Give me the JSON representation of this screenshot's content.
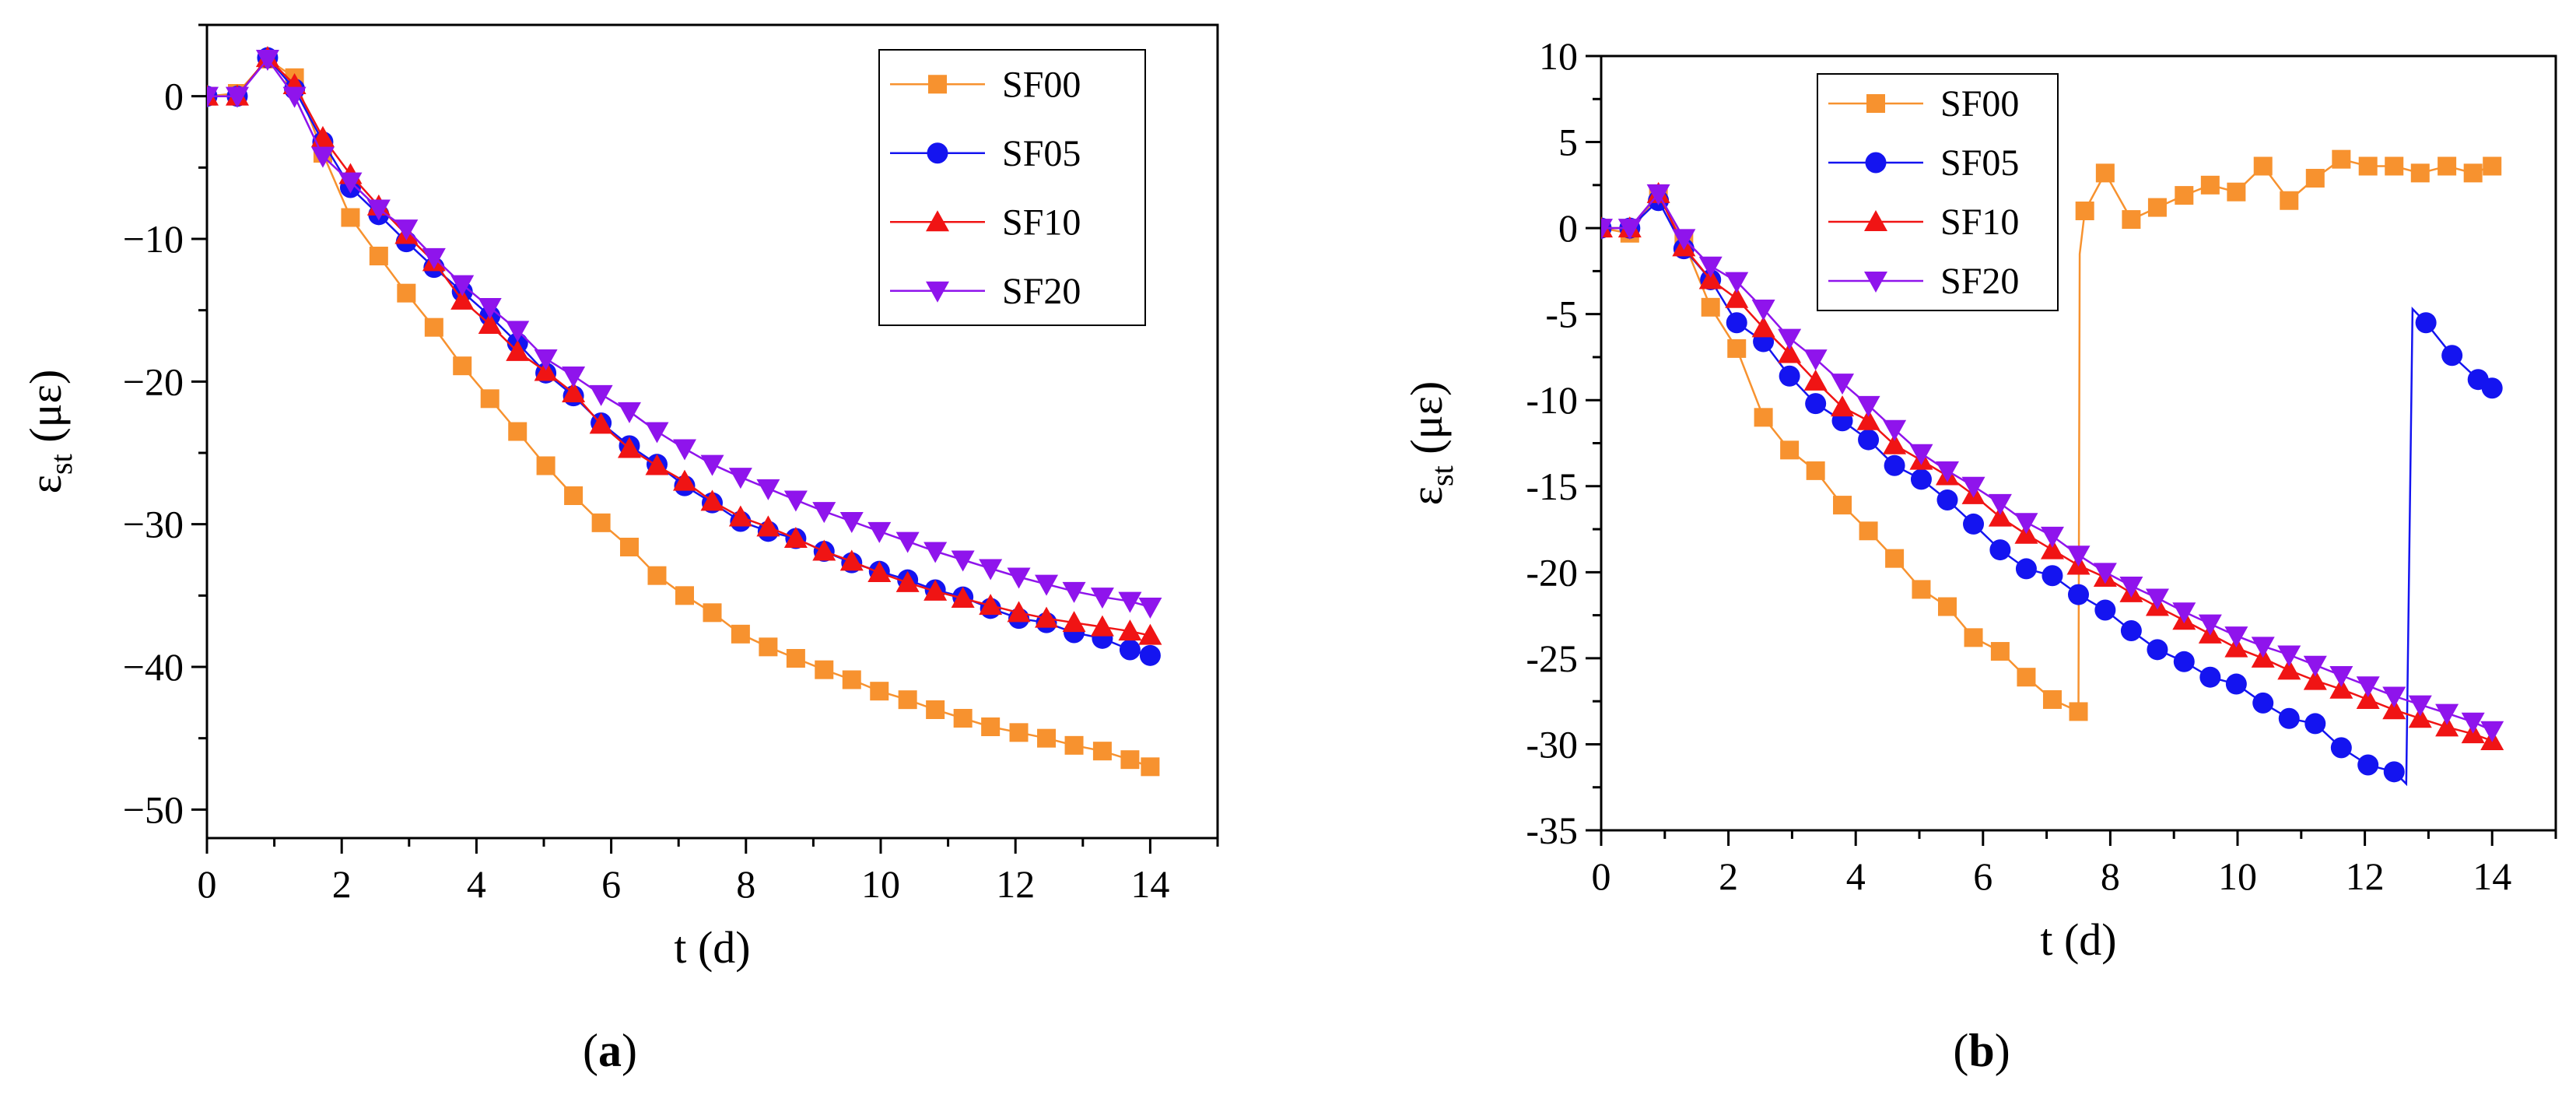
{
  "chart_data": [
    {
      "type": "line",
      "panel": "a",
      "xlabel_main": "t",
      "xlabel_unit": "(d)",
      "ylabel_symbol": "ε",
      "ylabel_sub": "st",
      "ylabel_unit": "(με)",
      "xlim": [
        0,
        15
      ],
      "ylim": [
        -52,
        5
      ],
      "xticks": [
        0,
        2,
        4,
        6,
        8,
        10,
        12,
        14
      ],
      "yticks": [
        0,
        -10,
        -20,
        -30,
        -40,
        -50
      ],
      "ytick_labels": [
        "0",
        "−10",
        "−20",
        "−30",
        "−40",
        "−50"
      ],
      "legend_position": "top-right",
      "series": [
        {
          "name": "SF00",
          "color": "#F7922F",
          "marker": "square",
          "x": [
            0,
            0.45,
            0.9,
            1.3,
            1.72,
            2.13,
            2.55,
            2.96,
            3.37,
            3.79,
            4.2,
            4.61,
            5.03,
            5.44,
            5.85,
            6.27,
            6.68,
            7.09,
            7.5,
            7.92,
            8.33,
            8.74,
            9.16,
            9.57,
            9.98,
            10.4,
            10.81,
            11.22,
            11.63,
            12.05,
            12.46,
            12.87,
            13.29,
            13.7,
            14.0
          ],
          "y": [
            0,
            0.2,
            2.6,
            1.3,
            -4.0,
            -8.5,
            -11.2,
            -13.8,
            -16.2,
            -18.9,
            -21.2,
            -23.5,
            -25.9,
            -28.0,
            -29.9,
            -31.6,
            -33.6,
            -35.0,
            -36.2,
            -37.7,
            -38.6,
            -39.4,
            -40.2,
            -40.9,
            -41.7,
            -42.3,
            -43.0,
            -43.6,
            -44.2,
            -44.6,
            -45.0,
            -45.5,
            -45.9,
            -46.5,
            -47.0
          ]
        },
        {
          "name": "SF05",
          "color": "#1414F0",
          "marker": "circle",
          "x": [
            0,
            0.45,
            0.9,
            1.3,
            1.72,
            2.13,
            2.55,
            2.96,
            3.37,
            3.79,
            4.2,
            4.61,
            5.03,
            5.44,
            5.85,
            6.27,
            6.68,
            7.09,
            7.5,
            7.92,
            8.33,
            8.74,
            9.16,
            9.57,
            9.98,
            10.4,
            10.81,
            11.22,
            11.63,
            12.05,
            12.46,
            12.87,
            13.29,
            13.7,
            14.0
          ],
          "y": [
            0,
            0,
            2.7,
            0.5,
            -3.2,
            -6.4,
            -8.3,
            -10.2,
            -12.0,
            -13.7,
            -15.4,
            -17.3,
            -19.4,
            -21.0,
            -22.9,
            -24.5,
            -25.8,
            -27.3,
            -28.5,
            -29.8,
            -30.5,
            -31.0,
            -31.9,
            -32.7,
            -33.3,
            -33.9,
            -34.6,
            -35.1,
            -35.9,
            -36.6,
            -36.9,
            -37.6,
            -38.0,
            -38.8,
            -39.2
          ]
        },
        {
          "name": "SF10",
          "color": "#F01414",
          "marker": "triangle-up",
          "x": [
            0,
            0.45,
            0.9,
            1.3,
            1.72,
            2.13,
            2.55,
            2.96,
            3.37,
            3.79,
            4.2,
            4.61,
            5.03,
            5.44,
            5.85,
            6.27,
            6.68,
            7.09,
            7.5,
            7.92,
            8.33,
            8.74,
            9.16,
            9.57,
            9.98,
            10.4,
            10.81,
            11.22,
            11.63,
            12.05,
            12.46,
            12.87,
            13.29,
            13.7,
            14.0
          ],
          "y": [
            0,
            0,
            2.7,
            0.8,
            -2.9,
            -5.5,
            -7.7,
            -9.7,
            -11.6,
            -14.3,
            -16.0,
            -17.9,
            -19.3,
            -20.8,
            -23.0,
            -24.7,
            -25.9,
            -27.0,
            -28.4,
            -29.5,
            -30.2,
            -31.0,
            -31.9,
            -32.6,
            -33.4,
            -34.1,
            -34.7,
            -35.2,
            -35.7,
            -36.2,
            -36.6,
            -36.9,
            -37.2,
            -37.5,
            -37.8
          ]
        },
        {
          "name": "SF20",
          "color": "#8F14EC",
          "marker": "triangle-down",
          "x": [
            0,
            0.45,
            0.9,
            1.3,
            1.72,
            2.13,
            2.55,
            2.96,
            3.37,
            3.79,
            4.2,
            4.61,
            5.03,
            5.44,
            5.85,
            6.27,
            6.68,
            7.09,
            7.5,
            7.92,
            8.33,
            8.74,
            9.16,
            9.57,
            9.98,
            10.4,
            10.81,
            11.22,
            11.63,
            12.05,
            12.46,
            12.87,
            13.29,
            13.7,
            14.0
          ],
          "y": [
            0,
            0,
            2.6,
            0,
            -4.2,
            -6.0,
            -7.9,
            -9.3,
            -11.3,
            -13.2,
            -14.8,
            -16.4,
            -18.4,
            -19.6,
            -20.9,
            -22.1,
            -23.5,
            -24.7,
            -25.8,
            -26.7,
            -27.5,
            -28.3,
            -29.1,
            -29.8,
            -30.5,
            -31.2,
            -31.9,
            -32.5,
            -33.1,
            -33.7,
            -34.2,
            -34.7,
            -35.1,
            -35.4,
            -35.8
          ]
        }
      ]
    },
    {
      "type": "line",
      "panel": "b",
      "xlabel_main": "t",
      "xlabel_unit": "(d)",
      "ylabel_symbol": "ε",
      "ylabel_sub": "st",
      "ylabel_unit": "(με)",
      "xlim": [
        0,
        15
      ],
      "ylim": [
        -35,
        10
      ],
      "xticks": [
        0,
        2,
        4,
        6,
        8,
        10,
        12,
        14
      ],
      "yticks": [
        10,
        5,
        0,
        -5,
        -10,
        -15,
        -20,
        -25,
        -30,
        -35
      ],
      "ytick_labels": [
        "10",
        "5",
        "0",
        "-5",
        "-10",
        "-15",
        "-20",
        "-25",
        "-30",
        "-35"
      ],
      "legend_position": "top-left",
      "series": [
        {
          "name": "SF00",
          "color": "#F7922F",
          "marker": "square",
          "x": [
            0,
            0.45,
            0.9,
            1.3,
            1.72,
            2.13,
            2.55,
            2.96,
            3.37,
            3.79,
            4.2,
            4.61,
            5.03,
            5.44,
            5.85,
            6.27,
            6.68,
            7.09,
            7.5,
            7.52,
            7.6,
            7.92,
            8.33,
            8.74,
            9.16,
            9.57,
            9.98,
            10.4,
            10.81,
            11.22,
            11.63,
            12.05,
            12.46,
            12.87,
            13.29,
            13.7,
            14.0
          ],
          "y": [
            0,
            -0.3,
            2.0,
            -0.8,
            -4.6,
            -7.0,
            -11.0,
            -12.9,
            -14.1,
            -16.1,
            -17.6,
            -19.2,
            -21.0,
            -22.0,
            -23.8,
            -24.6,
            -26.1,
            -27.4,
            -28.1,
            -1.5,
            1.0,
            3.2,
            0.5,
            1.2,
            1.9,
            2.5,
            2.1,
            3.6,
            1.6,
            2.9,
            4.0,
            3.6,
            3.6,
            3.2,
            3.6,
            3.2,
            3.6
          ]
        },
        {
          "name": "SF05",
          "color": "#1414F0",
          "marker": "circle",
          "x": [
            0,
            0.45,
            0.9,
            1.3,
            1.72,
            2.13,
            2.55,
            2.96,
            3.37,
            3.79,
            4.2,
            4.61,
            5.03,
            5.44,
            5.85,
            6.27,
            6.68,
            7.09,
            7.5,
            7.92,
            8.33,
            8.74,
            9.16,
            9.57,
            9.98,
            10.4,
            10.81,
            11.22,
            11.63,
            12.05,
            12.46,
            12.65,
            12.75,
            12.96,
            13.37,
            13.78,
            14.0
          ],
          "y": [
            0,
            0,
            1.6,
            -1.2,
            -3.0,
            -5.5,
            -6.6,
            -8.6,
            -10.2,
            -11.2,
            -12.3,
            -13.8,
            -14.6,
            -15.8,
            -17.2,
            -18.7,
            -19.8,
            -20.2,
            -21.3,
            -22.2,
            -23.4,
            -24.5,
            -25.2,
            -26.1,
            -26.5,
            -27.6,
            -28.5,
            -28.8,
            -30.2,
            -31.2,
            -31.6,
            -32.3,
            -4.7,
            -5.5,
            -7.4,
            -8.8,
            -9.3
          ]
        },
        {
          "name": "SF10",
          "color": "#F01414",
          "marker": "triangle-up",
          "x": [
            0,
            0.45,
            0.9,
            1.3,
            1.72,
            2.13,
            2.55,
            2.96,
            3.37,
            3.79,
            4.2,
            4.61,
            5.03,
            5.44,
            5.85,
            6.27,
            6.68,
            7.09,
            7.5,
            7.92,
            8.33,
            8.74,
            9.16,
            9.57,
            9.98,
            10.4,
            10.81,
            11.22,
            11.63,
            12.05,
            12.46,
            12.87,
            13.29,
            13.7,
            14.0
          ],
          "y": [
            0,
            0,
            2.0,
            -1.1,
            -3.0,
            -4.1,
            -5.8,
            -7.3,
            -8.9,
            -10.4,
            -11.2,
            -12.6,
            -13.5,
            -14.4,
            -15.5,
            -16.8,
            -17.8,
            -18.7,
            -19.6,
            -20.3,
            -21.2,
            -22.0,
            -22.8,
            -23.6,
            -24.4,
            -25.0,
            -25.7,
            -26.3,
            -26.8,
            -27.4,
            -28.0,
            -28.5,
            -29.0,
            -29.4,
            -29.8
          ]
        },
        {
          "name": "SF20",
          "color": "#8F14EC",
          "marker": "triangle-down",
          "x": [
            0,
            0.45,
            0.9,
            1.3,
            1.72,
            2.13,
            2.55,
            2.96,
            3.37,
            3.79,
            4.2,
            4.61,
            5.03,
            5.44,
            5.85,
            6.27,
            6.68,
            7.09,
            7.5,
            7.92,
            8.33,
            8.74,
            9.16,
            9.57,
            9.98,
            10.4,
            10.81,
            11.22,
            11.63,
            12.05,
            12.46,
            12.87,
            13.29,
            13.7,
            14.0
          ],
          "y": [
            0,
            0,
            2.0,
            -0.6,
            -2.2,
            -3.1,
            -4.7,
            -6.4,
            -7.6,
            -9.0,
            -10.3,
            -11.7,
            -13.1,
            -14.1,
            -15.0,
            -16.0,
            -17.1,
            -17.9,
            -19.0,
            -20.0,
            -20.8,
            -21.5,
            -22.3,
            -23.0,
            -23.7,
            -24.3,
            -24.8,
            -25.4,
            -26.0,
            -26.6,
            -27.2,
            -27.7,
            -28.2,
            -28.7,
            -29.2
          ]
        }
      ]
    }
  ],
  "panel_labels": [
    "(a)",
    "(b)"
  ]
}
